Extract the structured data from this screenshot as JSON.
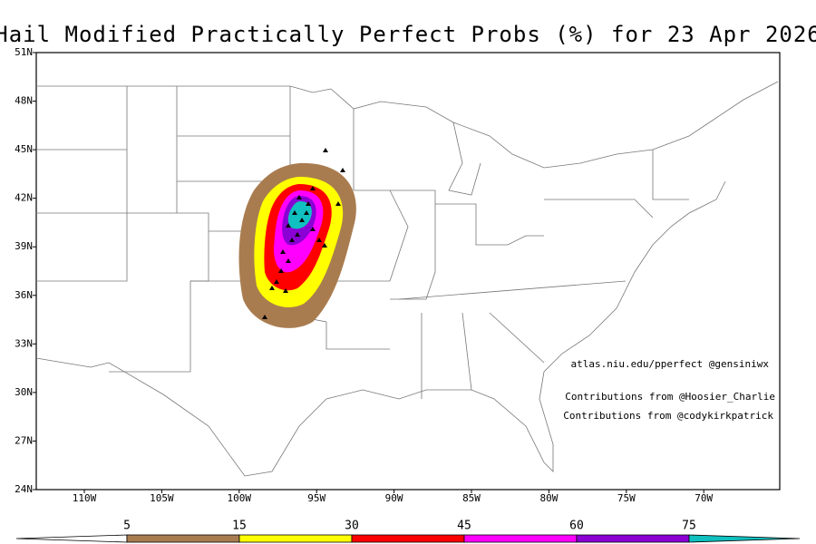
{
  "header": {
    "title": "Hail Modified Practically Perfect Probs (%) for 23 Apr 2026"
  },
  "map": {
    "lat_labels": [
      "51N",
      "48N",
      "45N",
      "42N",
      "39N",
      "36N",
      "33N",
      "30N",
      "27N",
      "24N"
    ],
    "lon_labels": [
      "110W",
      "105W",
      "100W",
      "95W",
      "90W",
      "85W",
      "80W",
      "75W",
      "70W"
    ]
  },
  "credits": [
    "atlas.niu.edu/pperfect @gensiniwx",
    "Contributions from @Hoosier_Charlie",
    "Contributions from @codykirkpatrick"
  ],
  "colorbar": {
    "levels": [
      5,
      15,
      30,
      45,
      60,
      75
    ],
    "colors": [
      "#ffffff",
      "#a97c50",
      "#ffff00",
      "#ff0000",
      "#ff00ff",
      "#8a00d4",
      "#10c0c0"
    ]
  }
}
